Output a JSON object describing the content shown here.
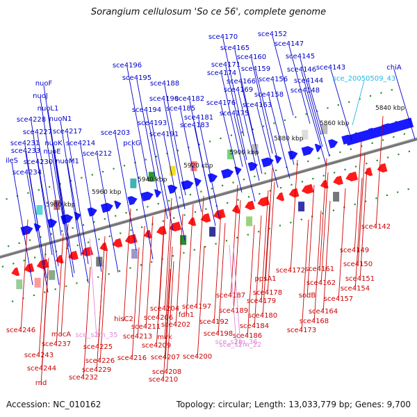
{
  "title": "Sorangium cellulosum 'So ce 56', complete genome",
  "footer": {
    "accession": "Accession: NC_010162",
    "summary": "Topology: circular; Length: 13,033,779 bp; Genes: 9,700"
  },
  "colors": {
    "forward_gene": "#1a1aff",
    "reverse_gene": "#ff1a1a",
    "forward_label": "#0000cc",
    "reverse_label": "#cc0000",
    "rna_label_fwd": "#22b8e6",
    "rna_label_rev": "#e08ad8",
    "backbone": "#777777",
    "tick_dot": "#2e8b2e"
  },
  "ticks": [
    {
      "label": "5840 kbp"
    },
    {
      "label": "5860 kbp"
    },
    {
      "label": "5880 kbp"
    },
    {
      "label": "5900 kbp"
    },
    {
      "label": "5920 kbp"
    },
    {
      "label": "5940 kbp"
    },
    {
      "label": "5960 kbp"
    },
    {
      "label": "5980 kbp"
    }
  ],
  "labels_forward": [
    {
      "text": "nuoF"
    },
    {
      "text": "nuoJ"
    },
    {
      "text": "nuoL1"
    },
    {
      "text": "nuoN1"
    },
    {
      "text": "sce4228"
    },
    {
      "text": "sce4227"
    },
    {
      "text": "sce4217"
    },
    {
      "text": "sce4231"
    },
    {
      "text": "nuoK"
    },
    {
      "text": "sce4214"
    },
    {
      "text": "sce4233"
    },
    {
      "text": "nuoE"
    },
    {
      "text": "ileS"
    },
    {
      "text": "sce4230"
    },
    {
      "text": "nuoM1"
    },
    {
      "text": "sce4234"
    },
    {
      "text": "sce4212"
    },
    {
      "text": "sce4203"
    },
    {
      "text": "pckG"
    },
    {
      "text": "sce4196"
    },
    {
      "text": "sce4195"
    },
    {
      "text": "sce4188"
    },
    {
      "text": "sce4190"
    },
    {
      "text": "sce4194"
    },
    {
      "text": "sce4193"
    },
    {
      "text": "sce4191"
    },
    {
      "text": "sce4182"
    },
    {
      "text": "sce4185"
    },
    {
      "text": "sce4181"
    },
    {
      "text": "sce4183"
    },
    {
      "text": "sce4170"
    },
    {
      "text": "sce4165"
    },
    {
      "text": "sce4160"
    },
    {
      "text": "sce4171"
    },
    {
      "text": "sce4174"
    },
    {
      "text": "sce4166"
    },
    {
      "text": "sce4169"
    },
    {
      "text": "sce4176"
    },
    {
      "text": "sce4175"
    },
    {
      "text": "sce4159"
    },
    {
      "text": "sce4156"
    },
    {
      "text": "sce4158"
    },
    {
      "text": "sce4163"
    },
    {
      "text": "sce4152"
    },
    {
      "text": "sce4147"
    },
    {
      "text": "sce4145"
    },
    {
      "text": "sce4146"
    },
    {
      "text": "sce4144"
    },
    {
      "text": "sce4148"
    },
    {
      "text": "sce4143"
    },
    {
      "text": "chiA"
    }
  ],
  "label_rna_forward": {
    "text": "sce_20050509_43"
  },
  "labels_reverse": [
    {
      "text": "sce4142"
    },
    {
      "text": "sce4149"
    },
    {
      "text": "sce4150"
    },
    {
      "text": "sce4151"
    },
    {
      "text": "sce4154"
    },
    {
      "text": "sce4157"
    },
    {
      "text": "sce4161"
    },
    {
      "text": "sce4162"
    },
    {
      "text": "sodB"
    },
    {
      "text": "sce4164"
    },
    {
      "text": "sce4168"
    },
    {
      "text": "sce4173"
    },
    {
      "text": "sce4172"
    },
    {
      "text": "ppsA1"
    },
    {
      "text": "sce4178"
    },
    {
      "text": "sce4179"
    },
    {
      "text": "sce4187"
    },
    {
      "text": "sce4189"
    },
    {
      "text": "sce4180"
    },
    {
      "text": "sce4184"
    },
    {
      "text": "sce4186"
    },
    {
      "text": "sce4192"
    },
    {
      "text": "sce4197"
    },
    {
      "text": "fdh1"
    },
    {
      "text": "sce4198"
    },
    {
      "text": "sce4200"
    },
    {
      "text": "sce4204"
    },
    {
      "text": "sce4206"
    },
    {
      "text": "sce4202"
    },
    {
      "text": "sce4211"
    },
    {
      "text": "mvk"
    },
    {
      "text": "sce4213"
    },
    {
      "text": "sce4209"
    },
    {
      "text": "sce4207"
    },
    {
      "text": "sce4208"
    },
    {
      "text": "sce4210"
    },
    {
      "text": "hisC2"
    },
    {
      "text": "sce4216"
    },
    {
      "text": "sce4225"
    },
    {
      "text": "sce4226"
    },
    {
      "text": "sce4229"
    },
    {
      "text": "sce4232"
    },
    {
      "text": "mocA"
    },
    {
      "text": "sce4237"
    },
    {
      "text": "sce4246"
    },
    {
      "text": "sce4243"
    },
    {
      "text": "sce4244"
    },
    {
      "text": "rnd"
    }
  ],
  "labels_rna_reverse": [
    {
      "text": "sce_s2m_35"
    },
    {
      "text": "sce_s2m_36"
    },
    {
      "text": "sce_s2m_22"
    }
  ]
}
